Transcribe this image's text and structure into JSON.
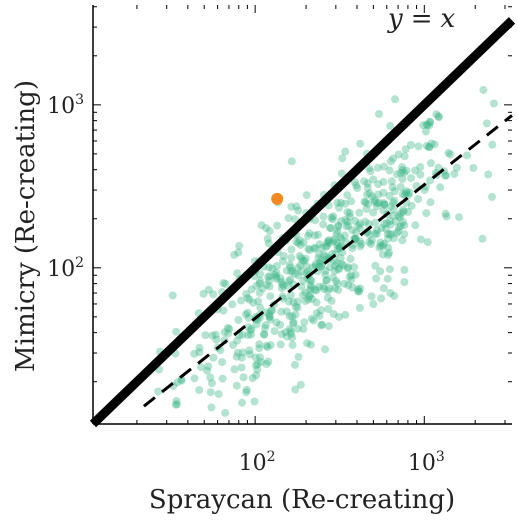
{
  "chart_data": {
    "type": "scatter",
    "title": "",
    "xlabel": "Spraycan (Re-creating)",
    "ylabel": "Mimicry (Re-creating)",
    "xscale": "log",
    "yscale": "log",
    "xlim": [
      11,
      3300
    ],
    "ylim": [
      11,
      4100
    ],
    "x_ticks": [
      {
        "value": 100,
        "base": "10",
        "exp": "2"
      },
      {
        "value": 1000,
        "base": "10",
        "exp": "3"
      }
    ],
    "y_ticks": [
      {
        "value": 100,
        "base": "10",
        "exp": "2"
      },
      {
        "value": 1000,
        "base": "10",
        "exp": "3"
      }
    ],
    "grid": false,
    "reference_line": {
      "label": "y = x",
      "label_x": "x",
      "label_y": "y",
      "label_eq": "=",
      "style": "solid",
      "color": "#000000"
    },
    "fit_line": {
      "slope": 0.82,
      "intercept_log10": 0.05,
      "x_range": [
        22,
        3300
      ],
      "style": "dashed",
      "color": "#000000"
    },
    "highlight_point": {
      "x": 135,
      "y": 265,
      "color": "#f28a20"
    },
    "scatter_color": "#3bb587",
    "scatter_count": 600,
    "scatter_description_x_range": [
      19,
      3000
    ],
    "scatter_description_y_range": [
      12,
      1800
    ]
  },
  "colors": {
    "scatter": "#3bb587",
    "highlight": "#f28a20",
    "lines": "#000000",
    "axis": "#000000"
  }
}
